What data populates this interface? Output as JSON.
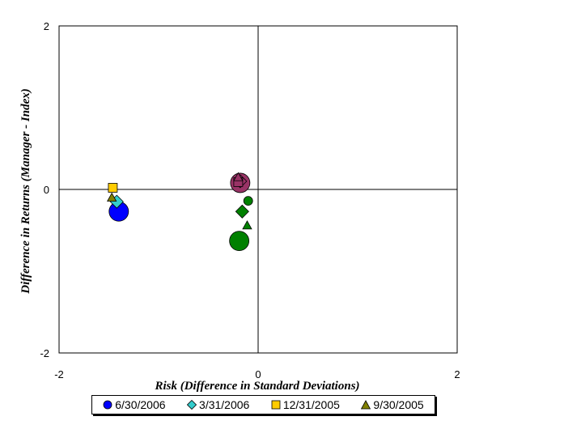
{
  "chart_data": {
    "type": "scatter",
    "title": "",
    "xlabel": "Risk (Difference in Standard Deviations)",
    "ylabel": "Difference in Returns (Manager - Index)",
    "xlim": [
      -2,
      2
    ],
    "ylim": [
      -2,
      2
    ],
    "xticks": [
      "-2",
      "0",
      "2"
    ],
    "yticks": [
      "2",
      "0",
      "-2"
    ],
    "grid": false,
    "legend_position": "bottom",
    "series": [
      {
        "name": "6/30/2006",
        "marker": "circle",
        "color": "#0000ff",
        "points": [
          {
            "x": -1.4,
            "y": -0.27,
            "size": "large",
            "color": "#0000ff"
          },
          {
            "x": -0.18,
            "y": 0.08,
            "size": "large",
            "color": "#993366"
          },
          {
            "x": -0.19,
            "y": -0.63,
            "size": "large",
            "color": "#008000"
          },
          {
            "x": -0.1,
            "y": -0.14,
            "size": "small",
            "color": "#008000"
          }
        ]
      },
      {
        "name": "3/31/2006",
        "marker": "diamond",
        "color": "#33cccc",
        "points": [
          {
            "x": -1.42,
            "y": -0.15,
            "size": "medium",
            "color": "#33cccc"
          },
          {
            "x": -0.18,
            "y": 0.1,
            "size": "medium",
            "color": "#993366"
          },
          {
            "x": -0.16,
            "y": -0.27,
            "size": "medium",
            "color": "#008000"
          }
        ]
      },
      {
        "name": "12/31/2005",
        "marker": "square",
        "color": "#ffcc00",
        "points": [
          {
            "x": -1.46,
            "y": 0.02,
            "size": "small",
            "color": "#ffcc00"
          },
          {
            "x": -0.2,
            "y": 0.09,
            "size": "small",
            "color": "#993366"
          }
        ]
      },
      {
        "name": "9/30/2005",
        "marker": "triangle",
        "color": "#808000",
        "points": [
          {
            "x": -1.47,
            "y": -0.1,
            "size": "small",
            "color": "#808000"
          },
          {
            "x": -0.2,
            "y": 0.15,
            "size": "small",
            "color": "#993366"
          },
          {
            "x": -0.11,
            "y": -0.44,
            "size": "small",
            "color": "#008000"
          }
        ]
      }
    ]
  }
}
